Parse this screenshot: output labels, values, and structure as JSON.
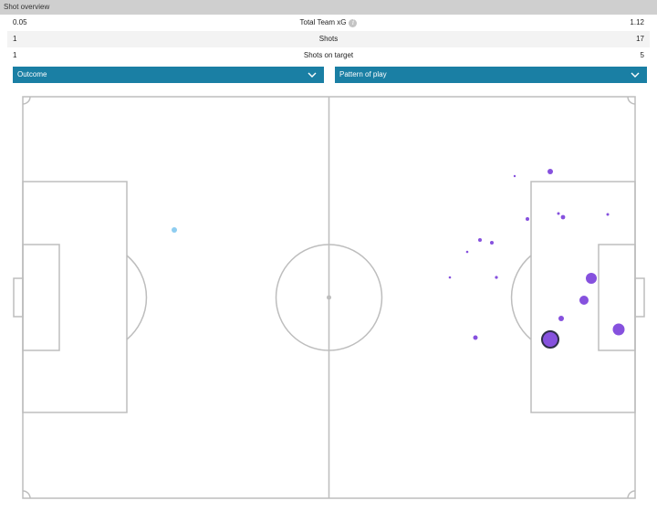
{
  "panel": {
    "title": "Shot overview"
  },
  "stats": [
    {
      "home": "0.05",
      "label": "Total Team xG",
      "away": "1.12",
      "has_info": true
    },
    {
      "home": "1",
      "label": "Shots",
      "away": "17"
    },
    {
      "home": "1",
      "label": "Shots on target",
      "away": "5"
    }
  ],
  "filters": {
    "outcome_label": "Outcome",
    "pattern_label": "Pattern of play"
  },
  "colors": {
    "accent": "#1a7fa4",
    "home_shot": "#8ecdf0",
    "away_shot": "#8651de",
    "pitch_lines": "#bdbdbd"
  }
}
